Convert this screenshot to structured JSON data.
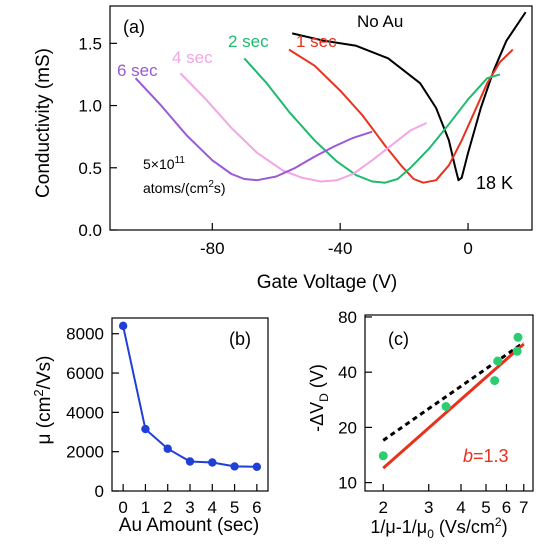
{
  "chart_data": [
    {
      "panel": "(a)",
      "type": "line",
      "xlabel": "Gate Voltage (V)",
      "ylabel": "Conductivity (mS)",
      "xlim": [
        -112,
        20
      ],
      "ylim": [
        0.0,
        1.8
      ],
      "xticks": [
        -80,
        -40,
        0
      ],
      "yticks": [
        0.0,
        0.5,
        1.0,
        1.5
      ],
      "x_ticklabels": [
        "-80",
        "-40",
        "0"
      ],
      "y_ticklabels": [
        "0.0",
        "0.5",
        "1.0",
        "1.5"
      ],
      "annotations": {
        "dose_line1": "5×10",
        "dose_exp": "11",
        "dose_line2a": "atoms/(cm",
        "dose_line2_exp": "2",
        "dose_line2b": "s)",
        "temperature": "18 K"
      },
      "series": [
        {
          "name": "No Au",
          "color": "#000000",
          "x": [
            -55,
            -45,
            -35,
            -25,
            -15,
            -10,
            -6,
            -4,
            -3,
            -2,
            0,
            4,
            8,
            12,
            18
          ],
          "y": [
            1.58,
            1.52,
            1.48,
            1.38,
            1.18,
            0.98,
            0.72,
            0.5,
            0.4,
            0.42,
            0.62,
            0.98,
            1.28,
            1.52,
            1.75
          ]
        },
        {
          "name": "1 sec",
          "color": "#e8321e",
          "x": [
            -56,
            -48,
            -40,
            -33,
            -26,
            -21,
            -17,
            -14,
            -10,
            -6,
            -2,
            2,
            6,
            10,
            14
          ],
          "y": [
            1.45,
            1.32,
            1.12,
            0.92,
            0.68,
            0.52,
            0.41,
            0.38,
            0.4,
            0.52,
            0.72,
            0.95,
            1.18,
            1.35,
            1.45
          ]
        },
        {
          "name": "2 sec",
          "color": "#1fba6e",
          "x": [
            -70,
            -63,
            -56,
            -48,
            -41,
            -35,
            -30,
            -26,
            -22,
            -18,
            -12,
            -6,
            0,
            6,
            10
          ],
          "y": [
            1.38,
            1.18,
            0.95,
            0.72,
            0.55,
            0.44,
            0.39,
            0.38,
            0.41,
            0.5,
            0.66,
            0.85,
            1.05,
            1.22,
            1.25
          ]
        },
        {
          "name": "4 sec",
          "color": "#f2a6e6",
          "x": [
            -90,
            -82,
            -74,
            -66,
            -58,
            -52,
            -46,
            -41,
            -36,
            -30,
            -24,
            -18,
            -13
          ],
          "y": [
            1.26,
            1.05,
            0.82,
            0.62,
            0.48,
            0.42,
            0.39,
            0.4,
            0.45,
            0.56,
            0.68,
            0.8,
            0.86
          ]
        },
        {
          "name": "6 sec",
          "color": "#9b59d6",
          "x": [
            -104,
            -96,
            -88,
            -80,
            -74,
            -70,
            -66,
            -60,
            -54,
            -48,
            -42,
            -36,
            -30
          ],
          "y": [
            1.22,
            1.0,
            0.76,
            0.56,
            0.45,
            0.41,
            0.4,
            0.43,
            0.5,
            0.59,
            0.67,
            0.74,
            0.79
          ]
        }
      ]
    },
    {
      "panel": "(b)",
      "type": "line",
      "xlabel": "Au Amount (sec)",
      "ylabel_main": "μ (cm",
      "ylabel_exp": "2",
      "ylabel_tail": "/Vs)",
      "xlim": [
        -0.5,
        6.5
      ],
      "ylim": [
        0,
        8800
      ],
      "xticks": [
        0,
        1,
        2,
        3,
        4,
        5,
        6
      ],
      "yticks": [
        0,
        2000,
        4000,
        6000,
        8000
      ],
      "x_ticklabels": [
        "0",
        "1",
        "2",
        "3",
        "4",
        "5",
        "6"
      ],
      "y_ticklabels": [
        "0",
        "2000",
        "4000",
        "6000",
        "8000"
      ],
      "color": "#1f3fd8",
      "x": [
        0,
        1,
        2,
        3,
        4,
        5,
        6
      ],
      "y": [
        8400,
        3150,
        2150,
        1500,
        1450,
        1250,
        1230
      ]
    },
    {
      "panel": "(c)",
      "type": "scatter",
      "xscale": "log",
      "yscale": "log",
      "xlabel_parts": [
        "1/μ-1/μ",
        "0",
        " (Vs/cm",
        "2",
        ")"
      ],
      "ylabel_parts": [
        "-ΔV",
        "D",
        " (V)"
      ],
      "xlim": [
        1.7,
        7.6
      ],
      "ylim": [
        9,
        82
      ],
      "xticks": [
        2,
        3,
        4,
        5,
        6,
        7
      ],
      "yticks": [
        10,
        20,
        40,
        80
      ],
      "x_ticklabels": [
        "2",
        "3",
        "4",
        "5",
        "6",
        "7"
      ],
      "y_ticklabels": [
        "10",
        "20",
        "40",
        "80"
      ],
      "points_color": "#2ecc71",
      "x": [
        2.0,
        3.5,
        5.4,
        5.55,
        6.6,
        6.65
      ],
      "y": [
        14,
        26,
        36,
        46,
        52,
        62
      ],
      "fit_solid": {
        "color": "#e8321e",
        "x": [
          2.0,
          7.0
        ],
        "y": [
          12,
          57
        ]
      },
      "fit_dashed": {
        "color": "#000000",
        "x": [
          2.0,
          7.0
        ],
        "y": [
          17,
          58
        ]
      },
      "annotation": {
        "b": "b",
        "rest": "=1.3",
        "color": "#e8321e"
      }
    }
  ]
}
